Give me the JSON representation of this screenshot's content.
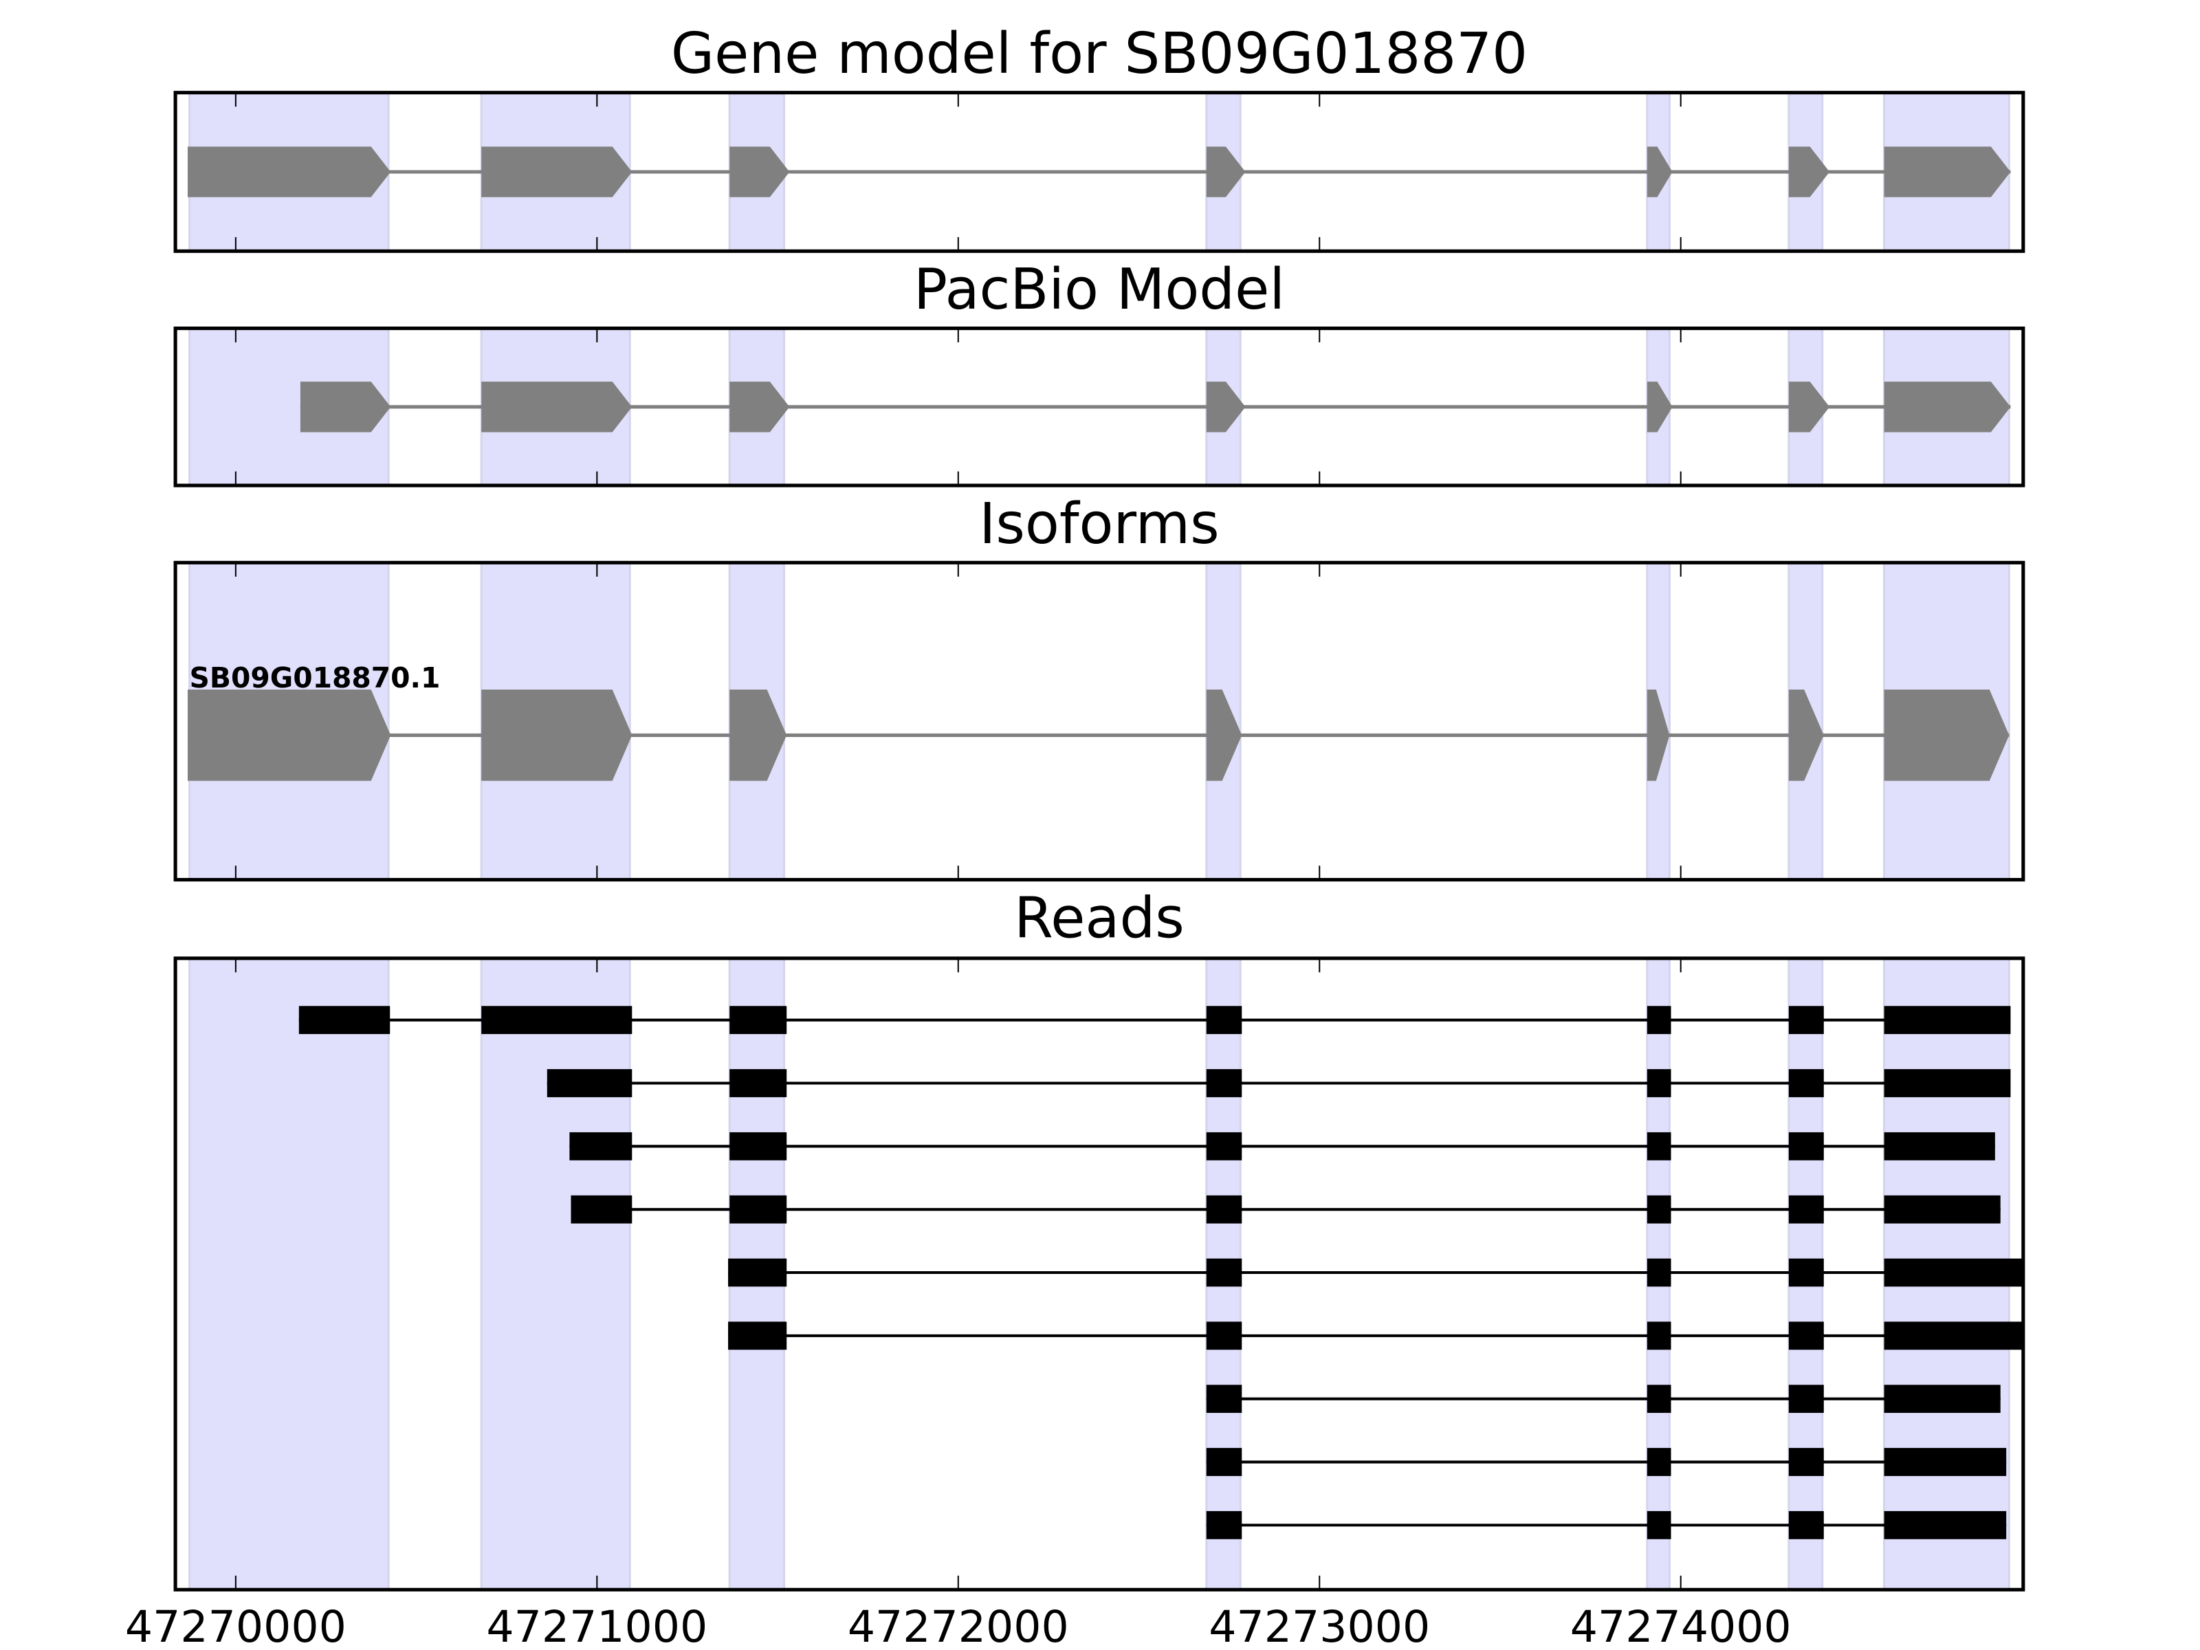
{
  "chart_data": {
    "type": "gene-track",
    "xlim": [
      47269833,
      47274948
    ],
    "xticks": [
      47270000,
      47271000,
      47272000,
      47273000,
      47274000
    ],
    "xtick_labels": [
      "47270000",
      "47271000",
      "47272000",
      "47273000",
      "47274000"
    ],
    "shading_color": "#e0e0fc",
    "model_color": "#808080",
    "read_color": "#000000",
    "exon_regions": [
      [
        47269872,
        47270423
      ],
      [
        47270680,
        47271091
      ],
      [
        47271367,
        47271518
      ],
      [
        47272687,
        47272781
      ],
      [
        47273907,
        47273969
      ],
      [
        47274299,
        47274392
      ],
      [
        47274563,
        47274909
      ]
    ],
    "panels": [
      {
        "title": "Gene model for SB09G018870",
        "kind": "model",
        "features": [
          [
            [
              47269867,
              47270429
            ],
            [
              47270680,
              47271097
            ],
            [
              47271367,
              47271533
            ],
            [
              47272687,
              47272795
            ],
            [
              47273907,
              47273977
            ],
            [
              47274299,
              47274412
            ],
            [
              47274563,
              47274913
            ]
          ]
        ]
      },
      {
        "title": "PacBio Model",
        "kind": "model",
        "features": [
          [
            [
              47270179,
              47270429
            ],
            [
              47270680,
              47271097
            ],
            [
              47271367,
              47271533
            ],
            [
              47272687,
              47272795
            ],
            [
              47273907,
              47273977
            ],
            [
              47274299,
              47274412
            ],
            [
              47274563,
              47274913
            ]
          ]
        ]
      },
      {
        "title": "Isoforms",
        "kind": "isoform",
        "label": "SB09G018870.1",
        "features": [
          [
            [
              47269867,
              47270429
            ],
            [
              47270680,
              47271097
            ],
            [
              47271367,
              47271525
            ],
            [
              47272687,
              47272785
            ],
            [
              47273907,
              47273969
            ],
            [
              47274299,
              47274396
            ],
            [
              47274563,
              47274909
            ]
          ]
        ]
      },
      {
        "title": "Reads",
        "kind": "reads",
        "features": [
          [
            [
              47270175,
              47270427
            ],
            [
              47270680,
              47271097
            ],
            [
              47271367,
              47271525
            ],
            [
              47272687,
              47272785
            ],
            [
              47273907,
              47273973
            ],
            [
              47274299,
              47274396
            ],
            [
              47274563,
              47274913
            ]
          ],
          [
            [
              47270862,
              47271097
            ],
            [
              47271367,
              47271525
            ],
            [
              47272687,
              47272785
            ],
            [
              47273907,
              47273973
            ],
            [
              47274299,
              47274396
            ],
            [
              47274563,
              47274913
            ]
          ],
          [
            [
              47270924,
              47271097
            ],
            [
              47271367,
              47271525
            ],
            [
              47272687,
              47272785
            ],
            [
              47273907,
              47273973
            ],
            [
              47274299,
              47274396
            ],
            [
              47274563,
              47274870
            ]
          ],
          [
            [
              47270928,
              47271097
            ],
            [
              47271367,
              47271525
            ],
            [
              47272687,
              47272785
            ],
            [
              47273907,
              47273973
            ],
            [
              47274299,
              47274396
            ],
            [
              47274563,
              47274885
            ]
          ],
          [
            [
              47271363,
              47271525
            ],
            [
              47272687,
              47272785
            ],
            [
              47273907,
              47273973
            ],
            [
              47274299,
              47274396
            ],
            [
              47274563,
              47274960
            ]
          ],
          [
            [
              47271363,
              47271525
            ],
            [
              47272687,
              47272785
            ],
            [
              47273907,
              47273973
            ],
            [
              47274299,
              47274396
            ],
            [
              47274563,
              47274960
            ]
          ],
          [
            [
              47272687,
              47272785
            ],
            [
              47273907,
              47273973
            ],
            [
              47274299,
              47274396
            ],
            [
              47274563,
              47274885
            ]
          ],
          [
            [
              47272687,
              47272785
            ],
            [
              47273907,
              47273973
            ],
            [
              47274299,
              47274396
            ],
            [
              47274563,
              47274901
            ]
          ],
          [
            [
              47272687,
              47272785
            ],
            [
              47273907,
              47273973
            ],
            [
              47274299,
              47274396
            ],
            [
              47274563,
              47274901
            ]
          ]
        ]
      }
    ]
  }
}
